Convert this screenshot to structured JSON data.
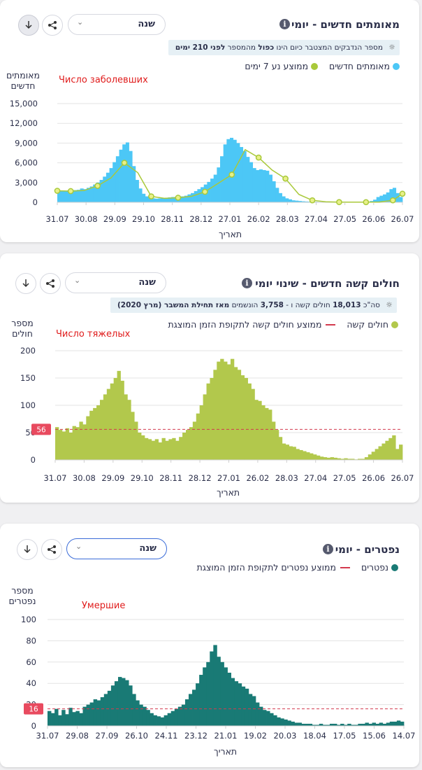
{
  "panels": [
    {
      "title": "מאומתים חדשים - יומי",
      "select_value": "שנה",
      "note_parts": [
        "מספר הנדבקים המצטבר כיום הינו ",
        "כפול",
        " מהמספר ",
        "לפני 210 ימים"
      ],
      "legend": [
        "מאומתים חדשים",
        "ממוצע נע 7 ימים"
      ],
      "y_title": "מאומתים חדשים",
      "annotation": "Число заболевших",
      "x_title": "תאריך",
      "colors": {
        "bars": "#4cc7f6",
        "line": "#a9c93a"
      }
    },
    {
      "title": "חולים קשה חדשים - שינוי יומי",
      "select_value": "שנה",
      "note_parts": [
        "סה\"כ ",
        "18,013",
        " חולים קשה ו - ",
        "3,758",
        " הונשמים ",
        "מאז תחילת המשבר (מרץ 2020)"
      ],
      "legend": [
        "חולים קשה",
        "ממוצע חולים קשה לתקופת הזמן המוצגת"
      ],
      "y_title": "מספר חולים",
      "annotation": "Число тяжелых",
      "x_title": "תאריך",
      "avg_badge": "56",
      "colors": {
        "bars": "#b2c84c",
        "avg": "#d33a4e"
      }
    },
    {
      "title": "נפטרים - יומי",
      "select_value": "שנה",
      "legend": [
        "נפטרים",
        "ממוצע נפטרים לתקופת הזמן המוצגת"
      ],
      "y_title": "מספר נפטרים",
      "annotation": "Умершие",
      "x_title": "תאריך",
      "avg_badge": "16",
      "colors": {
        "bars": "#197a75",
        "avg": "#d33a4e"
      }
    }
  ],
  "chart_data": [
    {
      "type": "bar",
      "title": "מאומתים חדשים - יומי",
      "xlabel": "תאריך",
      "ylabel": "מאומתים חדשים",
      "ylim": [
        0,
        15000
      ],
      "yticks": [
        0,
        3000,
        6000,
        9000,
        12000,
        15000
      ],
      "ytick_labels": [
        "0",
        "3,000",
        "6,000",
        "9,000",
        "12,000",
        "15,000"
      ],
      "xtick_labels": [
        "31.07",
        "30.08",
        "29.09",
        "29.10",
        "28.11",
        "28.12",
        "27.01",
        "26.02",
        "28.03",
        "27.04",
        "27.05",
        "26.06",
        "26.07"
      ],
      "x_range": [
        0,
        360
      ],
      "grid": true,
      "series": [
        {
          "name": "מאומתים חדשים",
          "kind": "bar",
          "x_start": 0,
          "step": 3,
          "values": [
            1700,
            1800,
            1750,
            1800,
            1700,
            1850,
            1900,
            2100,
            2000,
            2200,
            2400,
            2700,
            3000,
            3400,
            3900,
            4500,
            5200,
            6100,
            7000,
            8000,
            8800,
            9100,
            7800,
            5500,
            3400,
            2100,
            1300,
            900,
            700,
            600,
            550,
            600,
            650,
            700,
            750,
            800,
            800,
            850,
            900,
            1000,
            1200,
            1400,
            1700,
            2000,
            2300,
            2700,
            3100,
            3600,
            4200,
            5300,
            7000,
            8800,
            9600,
            9800,
            9500,
            9000,
            8400,
            7800,
            6900,
            6100,
            5200,
            4900,
            5000,
            4900,
            4800,
            4200,
            3200,
            2200,
            1400,
            900,
            600,
            450,
            300,
            250,
            200,
            150,
            120,
            100,
            80,
            70,
            60,
            50,
            40,
            35,
            30,
            25,
            20,
            20,
            20,
            20,
            30,
            40,
            50,
            60,
            80,
            100,
            200,
            400,
            800,
            1000,
            1200,
            1500,
            2000,
            2200,
            1400,
            800
          ]
        },
        {
          "name": "ממוצע נע 7 ימים",
          "kind": "line",
          "x": [
            0,
            14,
            28,
            42,
            56,
            70,
            84,
            98,
            112,
            126,
            140,
            154,
            168,
            182,
            196,
            210,
            224,
            238,
            252,
            266,
            280,
            294,
            308,
            322,
            336,
            350,
            360
          ],
          "values": [
            1750,
            1700,
            1800,
            2500,
            3700,
            6000,
            4500,
            900,
            600,
            700,
            900,
            1600,
            2900,
            4200,
            8000,
            6800,
            4900,
            3600,
            1200,
            300,
            80,
            30,
            20,
            20,
            40,
            300,
            1300
          ],
          "markers_at": [
            0,
            1,
            3,
            5,
            7,
            9,
            11,
            13,
            15,
            17,
            19,
            21,
            23,
            25,
            26
          ]
        }
      ]
    },
    {
      "type": "bar",
      "title": "חולים קשה חדשים - שינוי יומי",
      "xlabel": "תאריך",
      "ylabel": "מספר חולים",
      "ylim": [
        0,
        200
      ],
      "yticks": [
        0,
        50,
        100,
        150,
        200
      ],
      "ytick_labels": [
        "0",
        "50",
        "100",
        "150",
        "200"
      ],
      "xtick_labels": [
        "31.07",
        "30.08",
        "29.09",
        "29.10",
        "28.11",
        "28.12",
        "27.01",
        "26.02",
        "28.03",
        "27.04",
        "27.05",
        "26.06",
        "26.07"
      ],
      "x_range": [
        0,
        360
      ],
      "grid": true,
      "average": 56,
      "series": [
        {
          "name": "חולים קשה",
          "kind": "bar",
          "x_start": 0,
          "step": 3,
          "values": [
            60,
            55,
            52,
            58,
            50,
            62,
            60,
            70,
            65,
            80,
            90,
            95,
            100,
            110,
            120,
            130,
            140,
            150,
            163,
            145,
            120,
            110,
            88,
            70,
            50,
            45,
            40,
            38,
            35,
            38,
            32,
            40,
            35,
            38,
            40,
            35,
            42,
            50,
            55,
            60,
            70,
            85,
            100,
            120,
            140,
            150,
            165,
            180,
            185,
            180,
            175,
            185,
            170,
            165,
            155,
            150,
            140,
            130,
            110,
            108,
            100,
            95,
            92,
            70,
            55,
            42,
            30,
            28,
            25,
            24,
            20,
            18,
            16,
            14,
            12,
            10,
            8,
            6,
            5,
            4,
            5,
            4,
            3,
            2,
            3,
            2,
            2,
            1,
            2,
            2,
            5,
            10,
            15,
            20,
            25,
            30,
            35,
            40,
            45,
            20,
            28
          ]
        }
      ]
    },
    {
      "type": "bar",
      "title": "נפטרים - יומי",
      "xlabel": "תאריך",
      "ylabel": "מספר נפטרים",
      "ylim": [
        0,
        100
      ],
      "yticks": [
        0,
        20,
        40,
        60,
        80,
        100
      ],
      "ytick_labels": [
        "0",
        "20",
        "40",
        "60",
        "80",
        "100"
      ],
      "xtick_labels": [
        "31.07",
        "29.08",
        "27.09",
        "26.10",
        "24.11",
        "23.12",
        "21.01",
        "19.02",
        "20.03",
        "18.04",
        "17.05",
        "15.06",
        "14.07"
      ],
      "x_range": [
        0,
        360
      ],
      "grid": true,
      "average": 16,
      "series": [
        {
          "name": "נפטרים",
          "kind": "bar",
          "x_start": 0,
          "step": 3,
          "values": [
            14,
            12,
            16,
            10,
            15,
            11,
            17,
            13,
            14,
            12,
            18,
            20,
            22,
            25,
            24,
            27,
            30,
            33,
            38,
            42,
            46,
            45,
            43,
            38,
            30,
            24,
            20,
            18,
            15,
            12,
            10,
            9,
            8,
            10,
            12,
            14,
            16,
            18,
            20,
            25,
            30,
            34,
            40,
            48,
            55,
            60,
            70,
            76,
            65,
            60,
            55,
            50,
            45,
            42,
            40,
            37,
            35,
            30,
            28,
            22,
            18,
            15,
            14,
            12,
            10,
            8,
            7,
            6,
            5,
            4,
            3,
            3,
            2,
            2,
            2,
            1,
            1,
            2,
            1,
            1,
            2,
            2,
            1,
            2,
            1,
            2,
            1,
            1,
            2,
            2,
            3,
            2,
            3,
            2,
            3,
            2,
            3,
            4,
            4,
            5,
            4
          ]
        }
      ]
    }
  ]
}
